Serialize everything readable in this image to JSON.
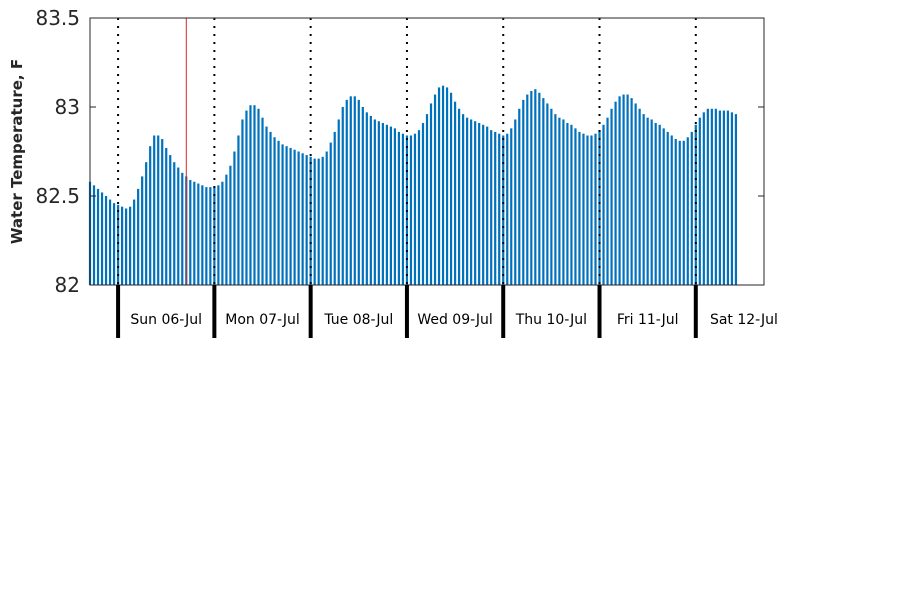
{
  "chart_data": {
    "type": "bar",
    "title": "",
    "ylabel": "Water Temperature, F",
    "xlabel": "",
    "ylim": [
      82,
      83.5
    ],
    "yticks": [
      {
        "value": 82,
        "label": "82"
      },
      {
        "value": 82.5,
        "label": "82.5"
      },
      {
        "value": 83,
        "label": "83"
      },
      {
        "value": 83.5,
        "label": "83.5"
      }
    ],
    "grid": false,
    "bar_color": "#0072BD",
    "now_marker_color": "#D62728",
    "day_labels": [
      "Sun 06-Jul",
      "Mon 07-Jul",
      "Tue 08-Jul",
      "Wed 09-Jul",
      "Thu 10-Jul",
      "Fri 11-Jul",
      "Sat 12-Jul"
    ],
    "x_start_hour": -7,
    "x_end_hour": 161,
    "now_marker_hour": 17,
    "values": [
      82.58,
      82.56,
      82.54,
      82.52,
      82.5,
      82.48,
      82.46,
      82.45,
      82.44,
      82.43,
      82.44,
      82.48,
      82.54,
      82.61,
      82.69,
      82.78,
      82.84,
      82.84,
      82.82,
      82.77,
      82.73,
      82.69,
      82.66,
      82.63,
      82.61,
      82.59,
      82.58,
      82.57,
      82.56,
      82.55,
      82.55,
      82.55,
      82.56,
      82.58,
      82.62,
      82.67,
      82.75,
      82.84,
      82.93,
      82.98,
      83.01,
      83.01,
      82.99,
      82.94,
      82.89,
      82.86,
      82.83,
      82.81,
      82.79,
      82.78,
      82.77,
      82.76,
      82.75,
      82.74,
      82.73,
      82.72,
      82.71,
      82.71,
      82.72,
      82.75,
      82.8,
      82.86,
      82.93,
      83.0,
      83.04,
      83.06,
      83.06,
      83.04,
      83.0,
      82.97,
      82.95,
      82.93,
      82.92,
      82.91,
      82.9,
      82.89,
      82.88,
      82.86,
      82.85,
      82.84,
      82.84,
      82.85,
      82.87,
      82.91,
      82.96,
      83.02,
      83.07,
      83.11,
      83.12,
      83.11,
      83.08,
      83.03,
      82.99,
      82.96,
      82.94,
      82.93,
      82.92,
      82.91,
      82.9,
      82.89,
      82.87,
      82.86,
      82.85,
      82.84,
      82.85,
      82.88,
      82.93,
      82.99,
      83.04,
      83.07,
      83.09,
      83.1,
      83.08,
      83.05,
      83.02,
      82.99,
      82.96,
      82.94,
      82.93,
      82.91,
      82.9,
      82.88,
      82.86,
      82.85,
      82.84,
      82.84,
      82.85,
      82.87,
      82.9,
      82.94,
      82.99,
      83.03,
      83.06,
      83.07,
      83.07,
      83.05,
      83.02,
      82.99,
      82.96,
      82.94,
      82.93,
      82.91,
      82.9,
      82.88,
      82.86,
      82.84,
      82.82,
      82.81,
      82.81,
      82.83,
      82.86,
      82.9,
      82.94,
      82.97,
      82.99,
      82.99,
      82.99,
      82.98,
      82.98,
      82.98,
      82.97,
      82.96
    ]
  }
}
